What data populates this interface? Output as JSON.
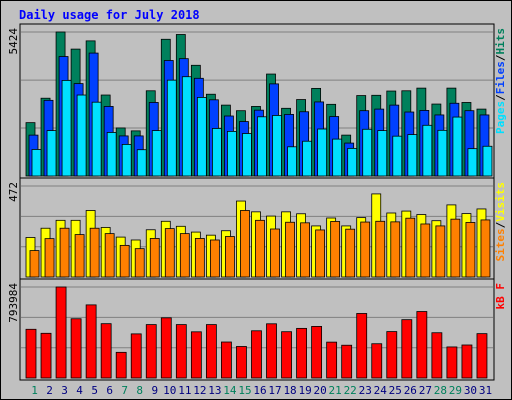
{
  "colors": {
    "background": "#c0c0c0",
    "plot_bg": "#c0c0c0",
    "grid": "#808080",
    "hits": "#00805c",
    "files": "#0040ff",
    "pages": "#00e0ff",
    "visits": "#ffff00",
    "sites": "#ff8000",
    "kbytes": "#ff0000",
    "title": "#0000ff",
    "weekend_label": "#00805c",
    "weekday_label": "#000080"
  },
  "chart_data": {
    "type": "bar",
    "title": "Daily usage for July 2018",
    "categories": [
      "1",
      "2",
      "3",
      "4",
      "5",
      "6",
      "7",
      "8",
      "9",
      "10",
      "11",
      "12",
      "13",
      "14",
      "15",
      "16",
      "17",
      "18",
      "19",
      "20",
      "21",
      "22",
      "23",
      "24",
      "25",
      "26",
      "27",
      "28",
      "29",
      "30",
      "31"
    ],
    "weekend_days": [
      "1",
      "7",
      "8",
      "14",
      "15",
      "21",
      "22",
      "28",
      "29"
    ],
    "panels": [
      {
        "id": "top",
        "max_label": "5424",
        "ymax": 5424,
        "legend": [
          "Pages",
          "/",
          "Files",
          "/",
          "Hits"
        ],
        "legend_colors": [
          "#00e0ff",
          "#000000",
          "#0040ff",
          "#000000",
          "#00805c"
        ],
        "series": [
          {
            "name": "Hits",
            "color": "#00805c",
            "values": [
              2010,
              2930,
              5424,
              4780,
              5090,
              3050,
              1810,
              1700,
              3210,
              5150,
              5330,
              4170,
              3080,
              2670,
              2460,
              2620,
              3840,
              2550,
              2880,
              3300,
              2700,
              1540,
              3030,
              3040,
              3200,
              3210,
              3310,
              2710,
              3310,
              2770,
              2520
            ]
          },
          {
            "name": "Files",
            "color": "#0040ff",
            "values": [
              1540,
              2850,
              4500,
              3480,
              4630,
              2620,
              1510,
              1510,
              2770,
              4350,
              4420,
              3680,
              2870,
              2260,
              2050,
              2480,
              3470,
              2320,
              2420,
              2790,
              2240,
              1240,
              2460,
              2520,
              2670,
              2410,
              2470,
              2300,
              2740,
              2460,
              2300
            ]
          },
          {
            "name": "Pages",
            "color": "#00e0ff",
            "values": [
              1000,
              1710,
              3600,
              3050,
              2780,
              1640,
              1190,
              990,
              1710,
              3610,
              3740,
              2960,
              1790,
              1680,
              1600,
              2230,
              2280,
              1100,
              1310,
              1770,
              1390,
              1040,
              1760,
              1710,
              1500,
              1560,
              1910,
              1720,
              2220,
              1030,
              1120
            ]
          }
        ]
      },
      {
        "id": "middle",
        "max_label": "472",
        "ymax": 472,
        "legend": [
          "Sites",
          "/",
          "Visits"
        ],
        "legend_colors": [
          "#ff8000",
          "#000000",
          "#ffff00"
        ],
        "series": [
          {
            "name": "Visits",
            "color": "#ffff00",
            "values": [
              205,
              253,
              294,
              294,
              345,
              257,
              207,
              192,
              245,
              289,
              263,
              233,
              217,
              240,
              394,
              338,
              316,
              338,
              328,
              265,
              306,
              265,
              308,
              431,
              332,
              342,
              324,
              292,
              374,
              329,
              353
            ]
          },
          {
            "name": "Sites",
            "color": "#ff8000",
            "values": [
              137,
              199,
              253,
              220,
              253,
              225,
              164,
              147,
              200,
              251,
              225,
              200,
              192,
              210,
              345,
              294,
              249,
              284,
              281,
              244,
              288,
              248,
              285,
              289,
              286,
              305,
              275,
              265,
              300,
              283,
              296
            ]
          }
        ]
      },
      {
        "id": "bottom",
        "max_label": "793984",
        "ymax": 793984,
        "legend": [
          "KBytes"
        ],
        "legend_text": "kB F",
        "legend_colors": [
          "#ff0000"
        ],
        "series": [
          {
            "name": "KBytes",
            "color": "#ff0000",
            "values": [
              425000,
              390000,
              793984,
              517000,
              638000,
              474000,
              224000,
              385000,
              466000,
              525000,
              466000,
              403000,
              466000,
              314000,
              275000,
              412000,
              473000,
              404000,
              433000,
              450000,
              313000,
              286000,
              563000,
              299000,
              405000,
              509000,
              580000,
              395000,
              271000,
              288000,
              387000
            ]
          }
        ]
      }
    ]
  }
}
